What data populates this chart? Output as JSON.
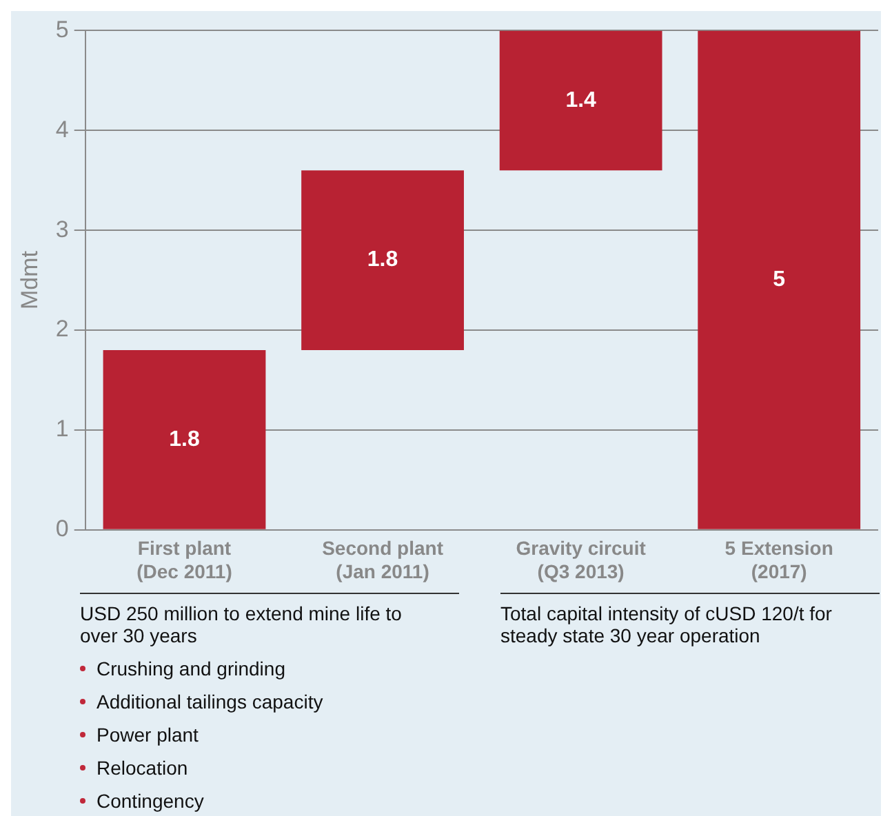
{
  "chart_data": {
    "type": "bar",
    "ylabel": "Mdmt",
    "categories": [
      "First plant\n(Dec 2011)",
      "Second plant\n(Jan 2011)",
      "Gravity circuit\n(Q3 2013)",
      "5 Extension\n(2017)"
    ],
    "values": [
      1.8,
      1.8,
      1.4,
      5
    ],
    "base": [
      0,
      1.8,
      3.6,
      0
    ],
    "color": "#b82233",
    "ylim": [
      0,
      5
    ],
    "yticks": [
      0,
      1,
      2,
      3,
      4,
      5
    ],
    "grid": "y",
    "data_labels": true,
    "legend": false,
    "annotations": [
      "USD 250 million to extend mine life to over 30 years",
      "Crushing and grinding",
      "Additional tailings capacity",
      "Power plant",
      "Relocation",
      "Contingency",
      "Total capital intensity of cUSD 120/t for steady state 30 year operation"
    ]
  }
}
